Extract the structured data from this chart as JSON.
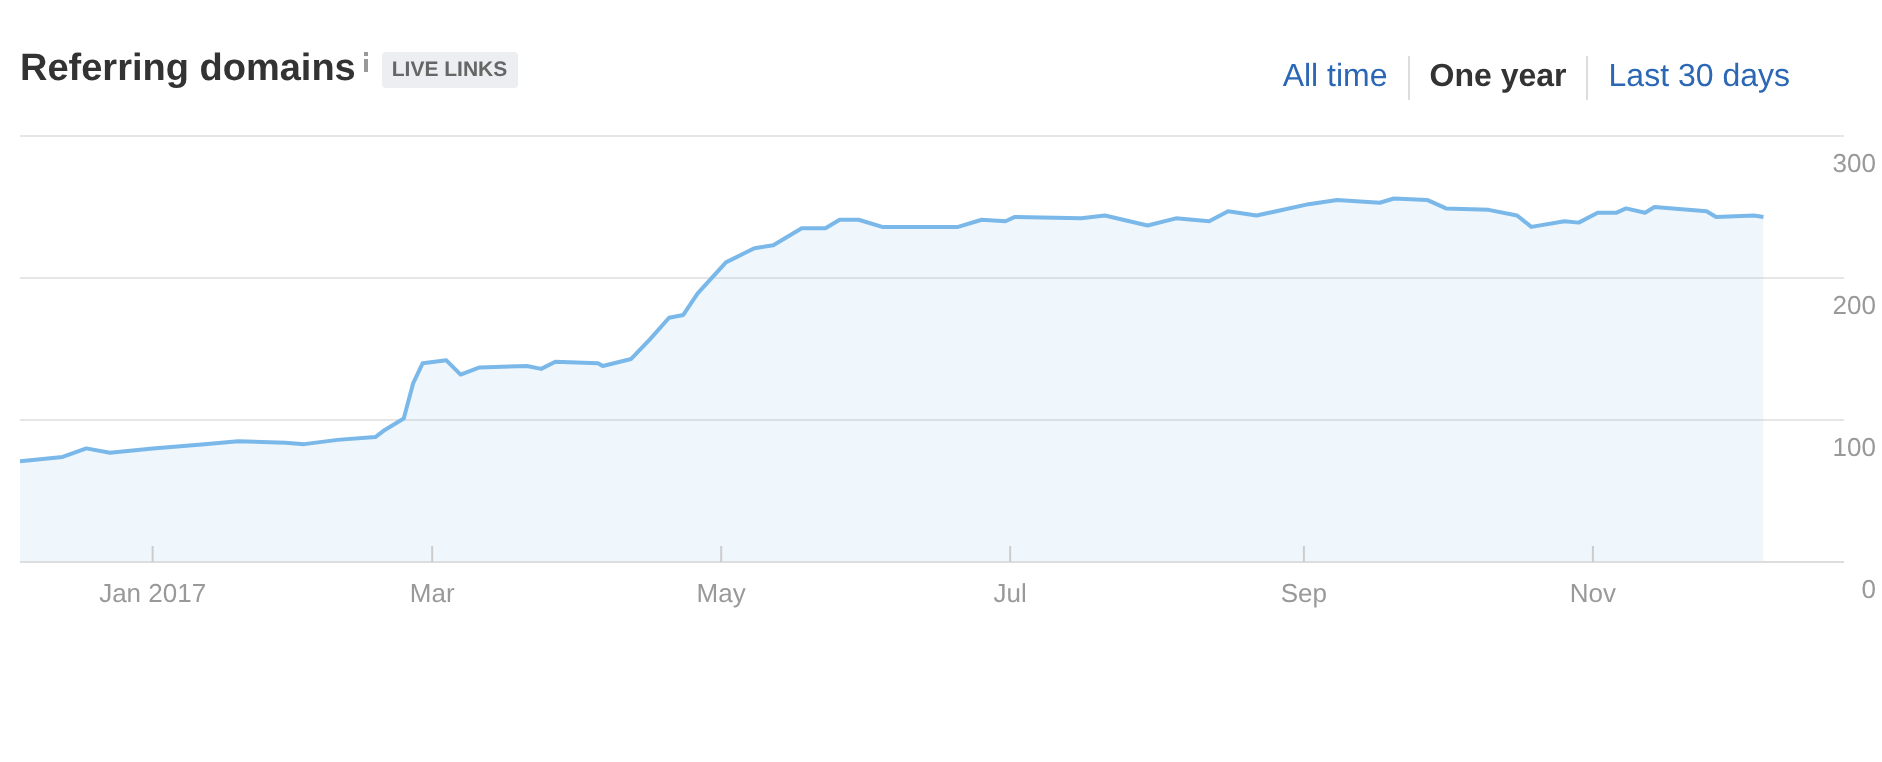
{
  "chart_data": {
    "type": "area",
    "title": "Referring domains",
    "subtitle": "LIVE LINKS",
    "annotations": [
      "All time",
      "One year",
      "Last 30 days"
    ],
    "x": [
      "2016-12-04",
      "2016-12-13",
      "2016-12-18",
      "2016-12-23",
      "2017-01-01",
      "2017-01-12",
      "2017-01-19",
      "2017-01-29",
      "2017-02-02",
      "2017-02-09",
      "2017-02-17",
      "2017-02-19",
      "2017-02-23",
      "2017-02-25",
      "2017-02-27",
      "2017-03-04",
      "2017-03-07",
      "2017-03-11",
      "2017-03-21",
      "2017-03-24",
      "2017-03-27",
      "2017-04-05",
      "2017-04-06",
      "2017-04-12",
      "2017-04-16",
      "2017-04-20",
      "2017-04-23",
      "2017-04-26",
      "2017-05-02",
      "2017-05-08",
      "2017-05-12",
      "2017-05-18",
      "2017-05-23",
      "2017-05-26",
      "2017-05-30",
      "2017-06-04",
      "2017-06-12",
      "2017-06-20",
      "2017-06-25",
      "2017-06-30",
      "2017-07-02",
      "2017-07-16",
      "2017-07-21",
      "2017-07-30",
      "2017-08-05",
      "2017-08-12",
      "2017-08-16",
      "2017-08-22",
      "2017-09-02",
      "2017-09-08",
      "2017-09-17",
      "2017-09-20",
      "2017-09-27",
      "2017-10-01",
      "2017-10-10",
      "2017-10-16",
      "2017-10-19",
      "2017-10-26",
      "2017-10-29",
      "2017-11-02",
      "2017-11-06",
      "2017-11-08",
      "2017-11-12",
      "2017-11-14",
      "2017-11-25",
      "2017-11-27",
      "2017-12-05",
      "2017-12-07"
    ],
    "series": [
      {
        "color": "#7ab8e9",
        "values": [
          71,
          74,
          80,
          77,
          80,
          83,
          85,
          84,
          83,
          86,
          88,
          93,
          101,
          126,
          140,
          142,
          132,
          137,
          138,
          136,
          141,
          140,
          138,
          143,
          157,
          172,
          174,
          189,
          211,
          221,
          223,
          235,
          235,
          241,
          241,
          236,
          236,
          236,
          241,
          240,
          243,
          242,
          244,
          237,
          242,
          240,
          247,
          244,
          252,
          255,
          253,
          256,
          255,
          249,
          248,
          244,
          236,
          240,
          239,
          246,
          246,
          249,
          246,
          250,
          247,
          243,
          244,
          243
        ]
      }
    ],
    "xlim": [
      "2016-12-04",
      "2017-12-24"
    ],
    "xticks": [
      {
        "value": "2017-01-01",
        "label": "Jan 2017"
      },
      {
        "value": "2017-03-01",
        "label": "Mar"
      },
      {
        "value": "2017-05-01",
        "label": "May"
      },
      {
        "value": "2017-07-01",
        "label": "Jul"
      },
      {
        "value": "2017-09-01",
        "label": "Sep"
      },
      {
        "value": "2017-11-01",
        "label": "Nov"
      }
    ],
    "ylim": [
      0,
      300
    ],
    "yticks": [
      0,
      100,
      200,
      300
    ],
    "grid": "y",
    "marker": "none"
  }
}
